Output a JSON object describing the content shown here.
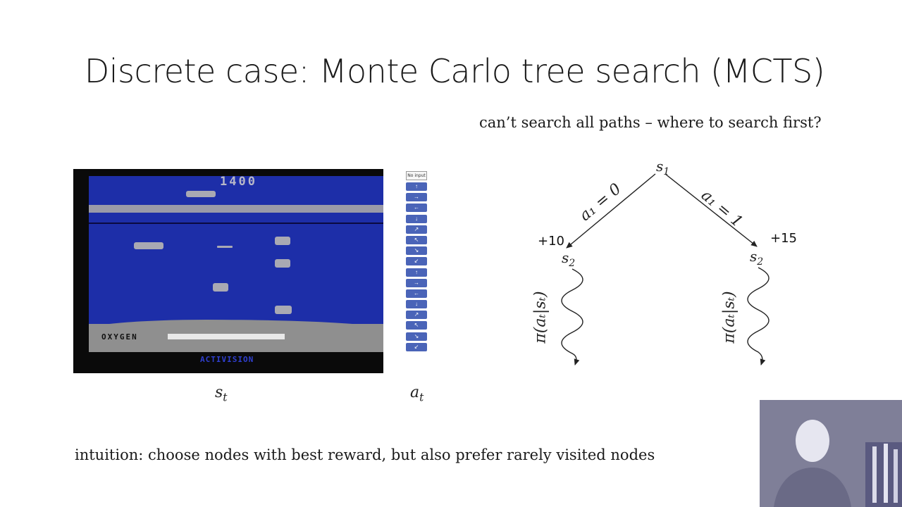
{
  "slide": {
    "title": "Discrete case: Monte Carlo tree search (MCTS)",
    "subtitle": "can’t search all paths – where to search first?",
    "intuition": "intuition: choose nodes with best reward, but also prefer rarely visited nodes"
  },
  "game": {
    "score": "1400",
    "oxygen_label": "OXYGEN",
    "brand": "ACTIVISION",
    "state_label": "s",
    "state_sub": "t"
  },
  "actions": {
    "no_input": "No input",
    "label": "a",
    "label_sub": "t",
    "buttons": [
      "↑",
      "→",
      "←",
      "↓",
      "↗",
      "↖",
      "↘",
      "↙",
      "↑",
      "→",
      "←",
      "↓",
      "↗",
      "↖",
      "↘",
      "↙"
    ]
  },
  "tree": {
    "root": "s",
    "root_sub": "1",
    "left_edge": "a₁ = 0",
    "right_edge": "a₁ = 1",
    "left_reward": "+10",
    "right_reward": "+15",
    "left_child": "s",
    "left_child_sub": "2",
    "right_child": "s",
    "right_child_sub": "2",
    "policy": "π(aₜ|sₜ)"
  }
}
